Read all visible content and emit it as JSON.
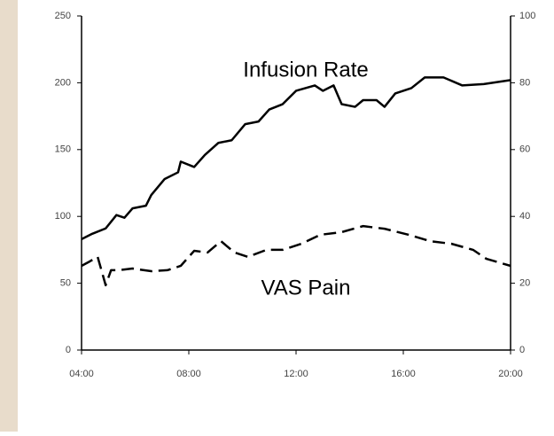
{
  "chart_data": {
    "type": "line",
    "annotations": [
      "Infusion Rate",
      "VAS Pain"
    ],
    "xlim": [
      4,
      20
    ],
    "xticks": [
      {
        "value": 4,
        "label": "04:00"
      },
      {
        "value": 8,
        "label": "08:00"
      },
      {
        "value": 12,
        "label": "12:00"
      },
      {
        "value": 16,
        "label": "16:00"
      },
      {
        "value": 20,
        "label": "20:00"
      }
    ],
    "ylim": [
      0,
      250
    ],
    "yticks": [
      0,
      50,
      100,
      150,
      200,
      250
    ],
    "y2lim": [
      0,
      100
    ],
    "y2ticks": [
      0,
      20,
      40,
      60,
      80,
      100
    ],
    "series": [
      {
        "color": "#000000",
        "line_style": "solid",
        "x": [
          4.0,
          4.4,
          4.9,
          5.3,
          5.6,
          5.9,
          6.4,
          6.6,
          7.1,
          7.6,
          7.7,
          8.2,
          8.6,
          9.1,
          9.6,
          10.1,
          10.6,
          11.0,
          11.5,
          12.0,
          12.7,
          13.0,
          13.4,
          13.7,
          14.2,
          14.5,
          15.0,
          15.3,
          15.7,
          16.3,
          16.8,
          17.5,
          18.2,
          19.0,
          20.0
        ],
        "values": [
          83,
          87,
          91,
          101,
          99,
          106,
          108,
          116,
          128,
          133,
          141,
          137,
          146,
          155,
          157,
          169,
          171,
          180,
          184,
          194,
          198,
          194,
          198,
          184,
          182,
          187,
          187,
          182,
          192,
          196,
          204,
          204,
          198,
          199,
          202
        ]
      },
      {
        "color": "#000000",
        "line_style": "dashed",
        "axis": "y2",
        "x": [
          4.0,
          4.3,
          4.6,
          4.9,
          5.1,
          5.4,
          5.9,
          6.6,
          7.2,
          7.7,
          8.2,
          8.7,
          9.2,
          9.7,
          10.2,
          10.9,
          11.5,
          12.2,
          12.9,
          13.7,
          14.5,
          15.3,
          16.2,
          17.0,
          17.8,
          18.6,
          19.1,
          20.0
        ],
        "values": [
          25.2,
          26.5,
          27.9,
          19.4,
          23.9,
          23.9,
          24.4,
          23.6,
          23.9,
          25.2,
          29.7,
          29.2,
          32.6,
          29.2,
          27.9,
          30.0,
          30.0,
          31.8,
          34.5,
          35.3,
          37.1,
          36.3,
          34.5,
          32.6,
          31.8,
          30.0,
          27.3,
          25.2
        ]
      }
    ]
  }
}
